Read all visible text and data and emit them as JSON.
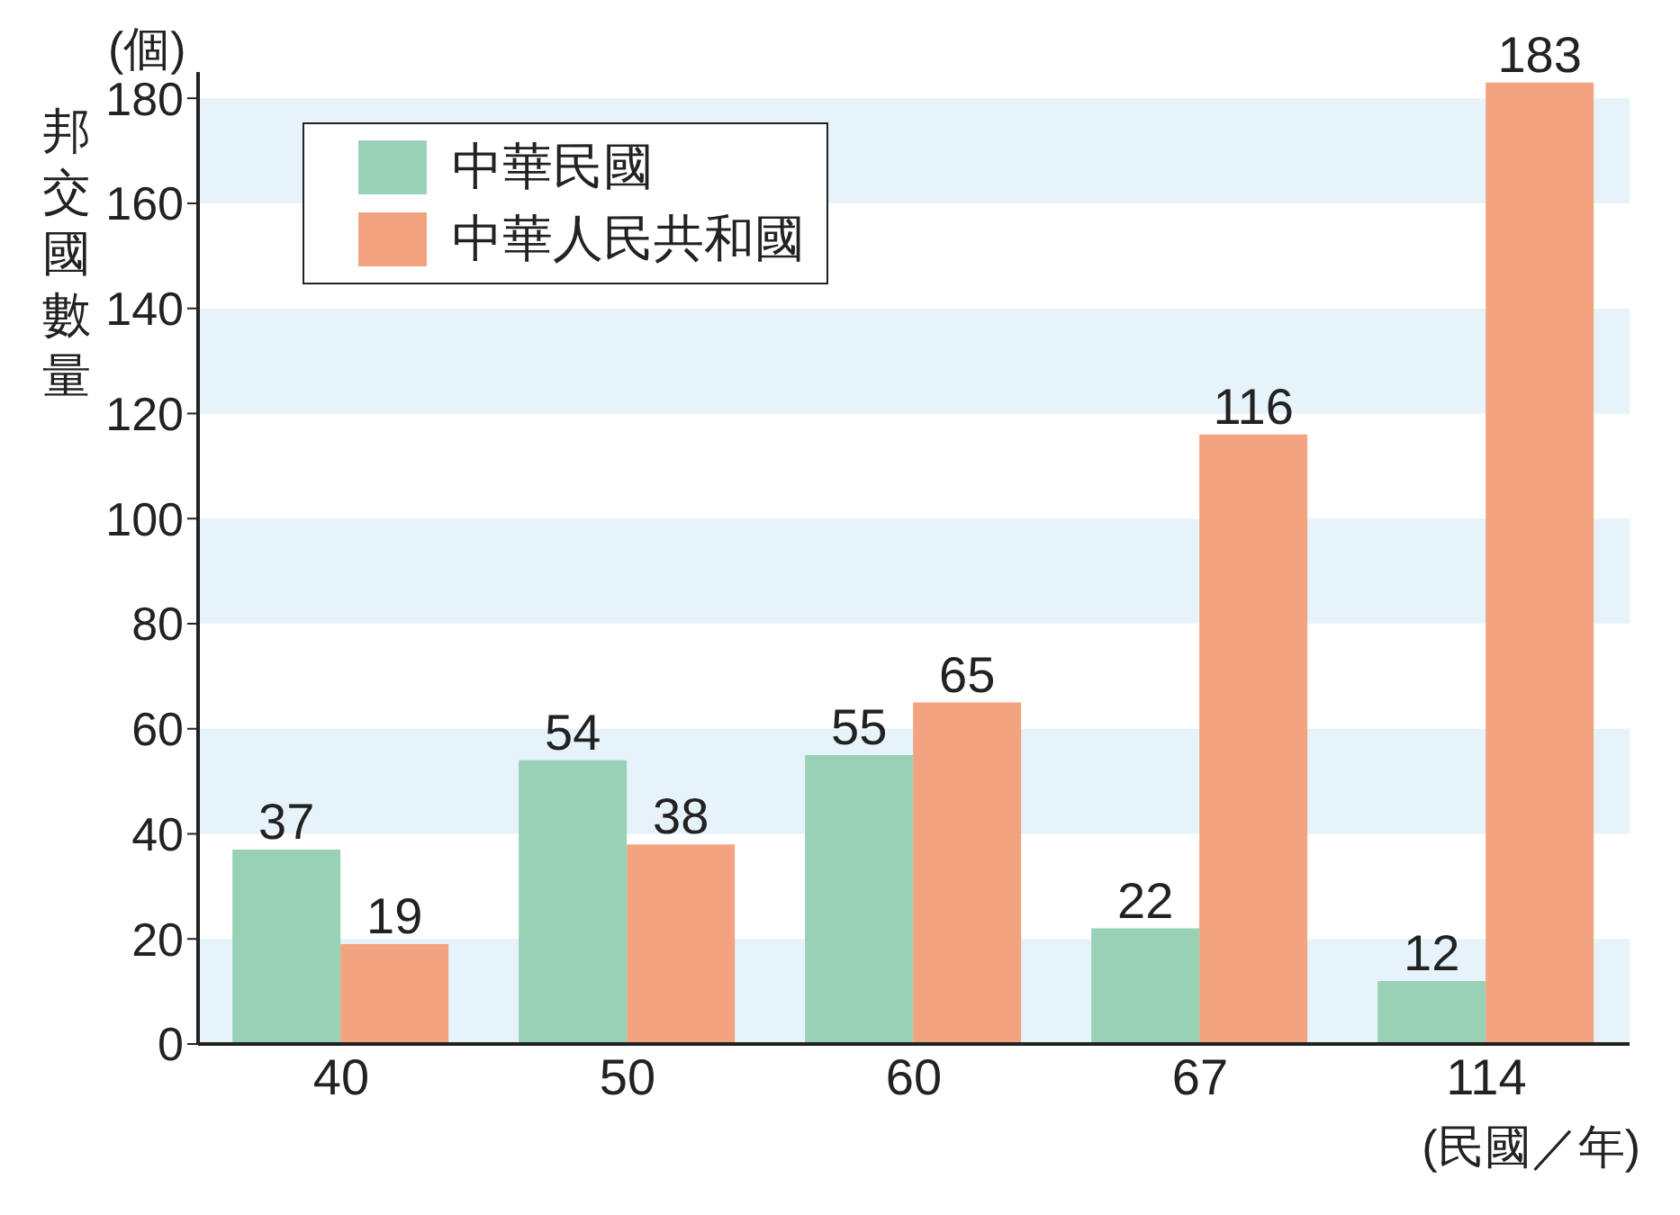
{
  "chart_data": {
    "type": "bar",
    "categories": [
      "40",
      "50",
      "60",
      "67",
      "114"
    ],
    "series": [
      {
        "name": "中華民國",
        "color": "#98d1b6",
        "values": [
          37,
          54,
          55,
          22,
          12
        ]
      },
      {
        "name": "中華人民共和國",
        "color": "#f2a481",
        "values": [
          19,
          38,
          65,
          116,
          183
        ]
      }
    ],
    "ylim": [
      0,
      185
    ],
    "yticks": [
      0,
      20,
      40,
      60,
      80,
      100,
      120,
      140,
      160,
      180
    ],
    "bands": [
      {
        "axis": "y",
        "from": 0,
        "to": 20,
        "color": "#e6f3fb"
      },
      {
        "axis": "y",
        "from": 40,
        "to": 60,
        "color": "#e6f3fb"
      },
      {
        "axis": "y",
        "from": 80,
        "to": 100,
        "color": "#e6f3fb"
      },
      {
        "axis": "y",
        "from": 120,
        "to": 140,
        "color": "#e6f3fb"
      },
      {
        "axis": "y",
        "from": 160,
        "to": 180,
        "color": "#e6f3fb"
      }
    ],
    "ylabel": "邦交國數量",
    "xlabel": "(民國／年)",
    "annotations": [
      "(個)"
    ],
    "data_labels": true,
    "legend": "top left"
  }
}
